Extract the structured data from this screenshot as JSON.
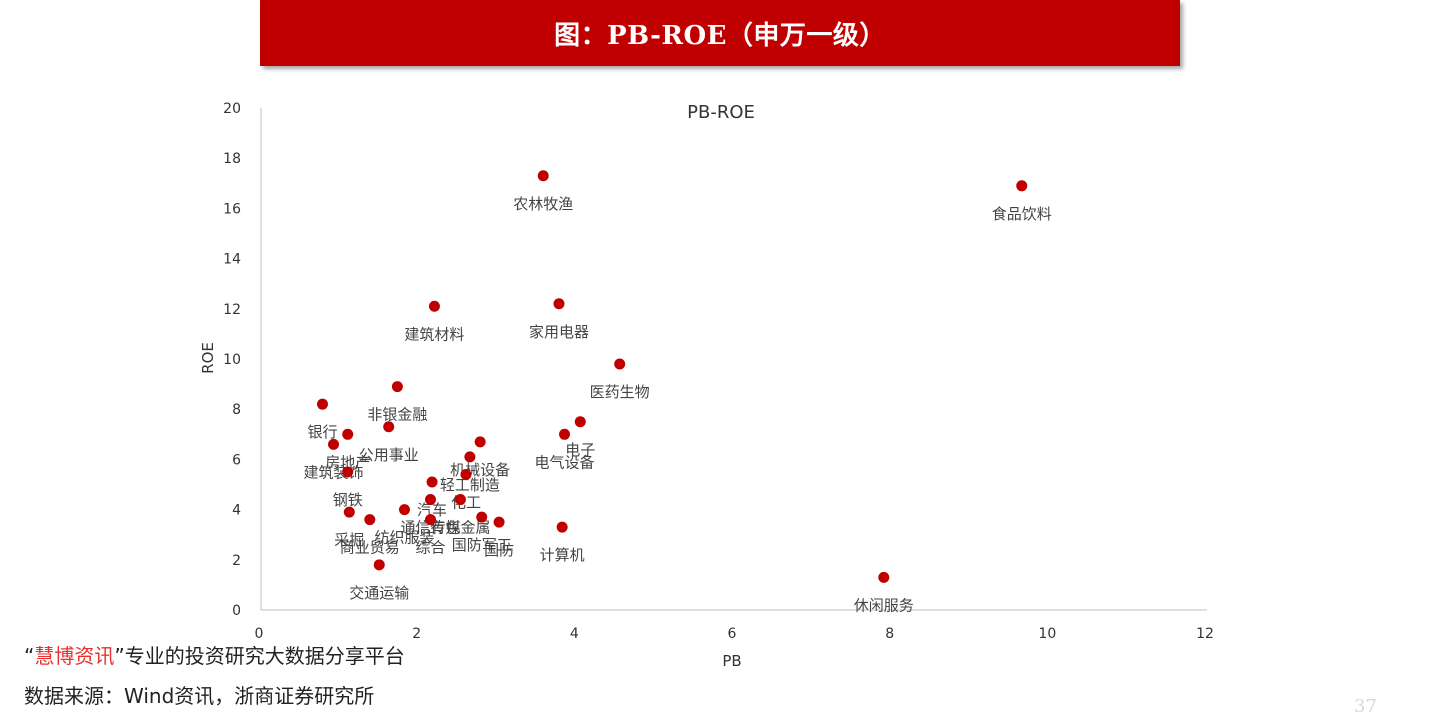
{
  "banner": {
    "title": "图：PB-ROE（申万一级）"
  },
  "colors": {
    "banner": "#c00000",
    "point": "#c00000",
    "brand": "#e8302f"
  },
  "chart_data": {
    "type": "scatter",
    "title": "PB-ROE",
    "xlabel": "PB",
    "ylabel": "ROE",
    "xlim": [
      0,
      12
    ],
    "ylim": [
      0,
      20
    ],
    "xticks": [
      "0",
      "2",
      "4",
      "6",
      "8",
      "10",
      "12"
    ],
    "yticks": [
      "0",
      "2",
      "4",
      "6",
      "8",
      "10",
      "12",
      "14",
      "16",
      "18",
      "20"
    ],
    "grid": false,
    "points": [
      {
        "label": "农林牧渔",
        "x": 3.58,
        "y": 17.3
      },
      {
        "label": "食品饮料",
        "x": 9.65,
        "y": 16.9
      },
      {
        "label": "建筑材料",
        "x": 2.2,
        "y": 12.1
      },
      {
        "label": "家用电器",
        "x": 3.78,
        "y": 12.2
      },
      {
        "label": "医药生物",
        "x": 4.55,
        "y": 9.8
      },
      {
        "label": "非银金融",
        "x": 1.73,
        "y": 8.9
      },
      {
        "label": "银行",
        "x": 0.78,
        "y": 8.2
      },
      {
        "label": "电子",
        "x": 4.05,
        "y": 7.5
      },
      {
        "label": "公用事业",
        "x": 1.62,
        "y": 7.3
      },
      {
        "label": "电气设备",
        "x": 3.85,
        "y": 7.0
      },
      {
        "label": "房地产",
        "x": 1.1,
        "y": 7.0
      },
      {
        "label": "机械设备",
        "x": 2.78,
        "y": 6.7
      },
      {
        "label": "建筑装饰",
        "x": 0.92,
        "y": 6.6
      },
      {
        "label": "轻工制造",
        "x": 2.65,
        "y": 6.1
      },
      {
        "label": "化工",
        "x": 2.6,
        "y": 5.4
      },
      {
        "label": "钢铁",
        "x": 1.1,
        "y": 5.5
      },
      {
        "label": "汽车",
        "x": 2.17,
        "y": 5.1
      },
      {
        "label": "通信传媒",
        "x": 2.15,
        "y": 4.4
      },
      {
        "label": "有色金属",
        "x": 2.53,
        "y": 4.4
      },
      {
        "label": "采掘",
        "x": 1.12,
        "y": 3.9
      },
      {
        "label": "纺织服装",
        "x": 1.82,
        "y": 4.0
      },
      {
        "label": "商业贸易",
        "x": 1.38,
        "y": 3.6
      },
      {
        "label": "综合",
        "x": 2.15,
        "y": 3.6
      },
      {
        "label": "国防军工",
        "x": 2.8,
        "y": 3.7
      },
      {
        "label": "计算机",
        "x": 3.82,
        "y": 3.3
      },
      {
        "label": "国防",
        "x": 3.02,
        "y": 3.5
      },
      {
        "label": "交通运输",
        "x": 1.5,
        "y": 1.8
      },
      {
        "label": "休闲服务",
        "x": 7.9,
        "y": 1.3
      }
    ]
  },
  "footer": {
    "brand_open": "“",
    "brand": "慧博资讯",
    "brand_close": "”",
    "slogan": "专业的投资研究大数据分享平台",
    "source": "数据来源：Wind资讯，浙商证券研究所",
    "page": "37"
  }
}
